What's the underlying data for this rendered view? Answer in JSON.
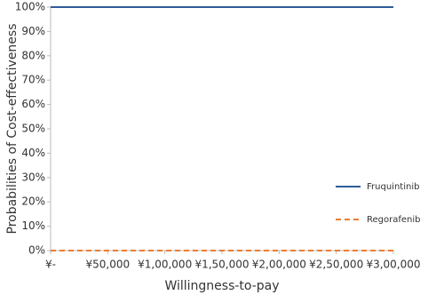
{
  "chart_data": {
    "type": "line",
    "x_label": "Willingness-to-pay",
    "y_label": "Probabilities of Cost-effectiveness",
    "x": [
      0,
      50000,
      100000,
      150000,
      200000,
      250000,
      300000
    ],
    "series": [
      {
        "name": "Fruquintinib",
        "color": "#2f5c95",
        "dash": "solid",
        "values": [
          100,
          100,
          100,
          100,
          100,
          100,
          100
        ]
      },
      {
        "name": "Regorafenib",
        "color": "#ed7d31",
        "dash": "dashed",
        "values": [
          0,
          0,
          0,
          0,
          0,
          0,
          0
        ]
      }
    ],
    "xlim": [
      0,
      300000
    ],
    "xticks": [
      {
        "value": 0,
        "label": "¥-"
      },
      {
        "value": 50000,
        "label": "¥50,000"
      },
      {
        "value": 100000,
        "label": "¥1,00,000"
      },
      {
        "value": 150000,
        "label": "¥1,50,000"
      },
      {
        "value": 200000,
        "label": "¥2,00,000"
      },
      {
        "value": 250000,
        "label": "¥2,50,000"
      },
      {
        "value": 300000,
        "label": "¥3,00,000"
      }
    ],
    "ylim": [
      0,
      100
    ],
    "yticks": [
      {
        "value": 0,
        "label": "0%"
      },
      {
        "value": 10,
        "label": "10%"
      },
      {
        "value": 20,
        "label": "20%"
      },
      {
        "value": 30,
        "label": "30%"
      },
      {
        "value": 40,
        "label": "40%"
      },
      {
        "value": 50,
        "label": "50%"
      },
      {
        "value": 60,
        "label": "60%"
      },
      {
        "value": 70,
        "label": "70%"
      },
      {
        "value": 80,
        "label": "80%"
      },
      {
        "value": 90,
        "label": "90%"
      },
      {
        "value": 100,
        "label": "100%"
      }
    ],
    "grid": false,
    "legend": "right"
  }
}
